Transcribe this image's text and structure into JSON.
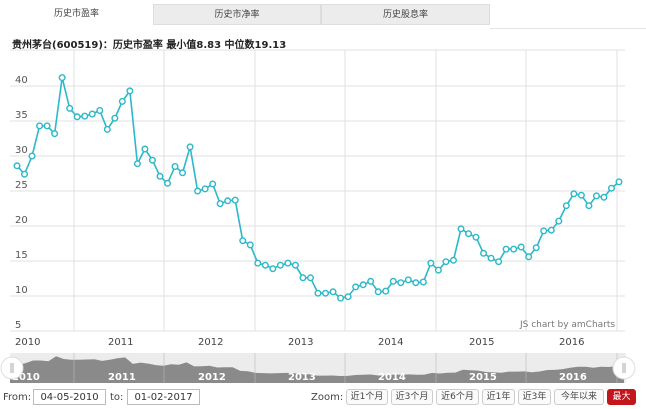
{
  "tabs": [
    {
      "label": "历史市盈率",
      "active": true
    },
    {
      "label": "历史市净率",
      "active": false
    },
    {
      "label": "历史股息率",
      "active": false
    }
  ],
  "title": "贵州茅台(600519)：历史市盈率 最小值8.83 中位数19.13",
  "credit": "JS chart by amCharts",
  "controls": {
    "from_label": "From:",
    "from_value": "04-05-2010",
    "to_label": "to:",
    "to_value": "01-02-2017",
    "zoom_label": "Zoom:",
    "zoom_buttons": [
      "近1个月",
      "近3个月",
      "近6个月",
      "近1年",
      "近3年",
      "今年以来",
      "最大"
    ],
    "selected_zoom": "最大"
  },
  "colors": {
    "line": "#2bb8c9",
    "selected": "#c3161c",
    "scrollbar": "#8a8a8a"
  },
  "chart_data": {
    "type": "line",
    "title": "贵州茅台(600519)：历史市盈率 最小值8.83 中位数19.13",
    "xlabel": "",
    "ylabel": "",
    "ylim": [
      5,
      45
    ],
    "yticks": [
      5,
      10,
      15,
      20,
      25,
      30,
      35,
      40
    ],
    "xticks": [
      "2010",
      "2011",
      "2012",
      "2013",
      "2014",
      "2015",
      "2016"
    ],
    "grid": true,
    "legend": "none",
    "series": [
      {
        "name": "历史市盈率",
        "values": [
          28.6,
          27.4,
          30.0,
          34.3,
          34.3,
          33.2,
          41.2,
          36.8,
          35.6,
          35.7,
          36.0,
          36.5,
          33.8,
          35.4,
          37.8,
          39.3,
          28.9,
          31.0,
          29.4,
          27.1,
          26.1,
          28.5,
          27.6,
          31.3,
          25.0,
          25.3,
          26.0,
          23.2,
          23.6,
          23.7,
          17.9,
          17.3,
          14.7,
          14.4,
          13.9,
          14.4,
          14.7,
          14.4,
          12.6,
          12.6,
          10.4,
          10.4,
          10.6,
          9.7,
          9.9,
          11.3,
          11.6,
          12.1,
          10.6,
          10.7,
          12.1,
          11.9,
          12.3,
          11.9,
          12.0,
          14.7,
          13.7,
          14.9,
          15.1,
          19.6,
          18.9,
          18.4,
          16.1,
          15.4,
          14.9,
          16.7,
          16.7,
          17.0,
          15.6,
          16.9,
          19.3,
          19.4,
          20.7,
          22.9,
          24.6,
          24.4,
          22.9,
          24.3,
          24.1,
          25.4,
          26.3
        ]
      }
    ],
    "x_range": [
      "04-05-2010",
      "01-02-2017"
    ]
  }
}
